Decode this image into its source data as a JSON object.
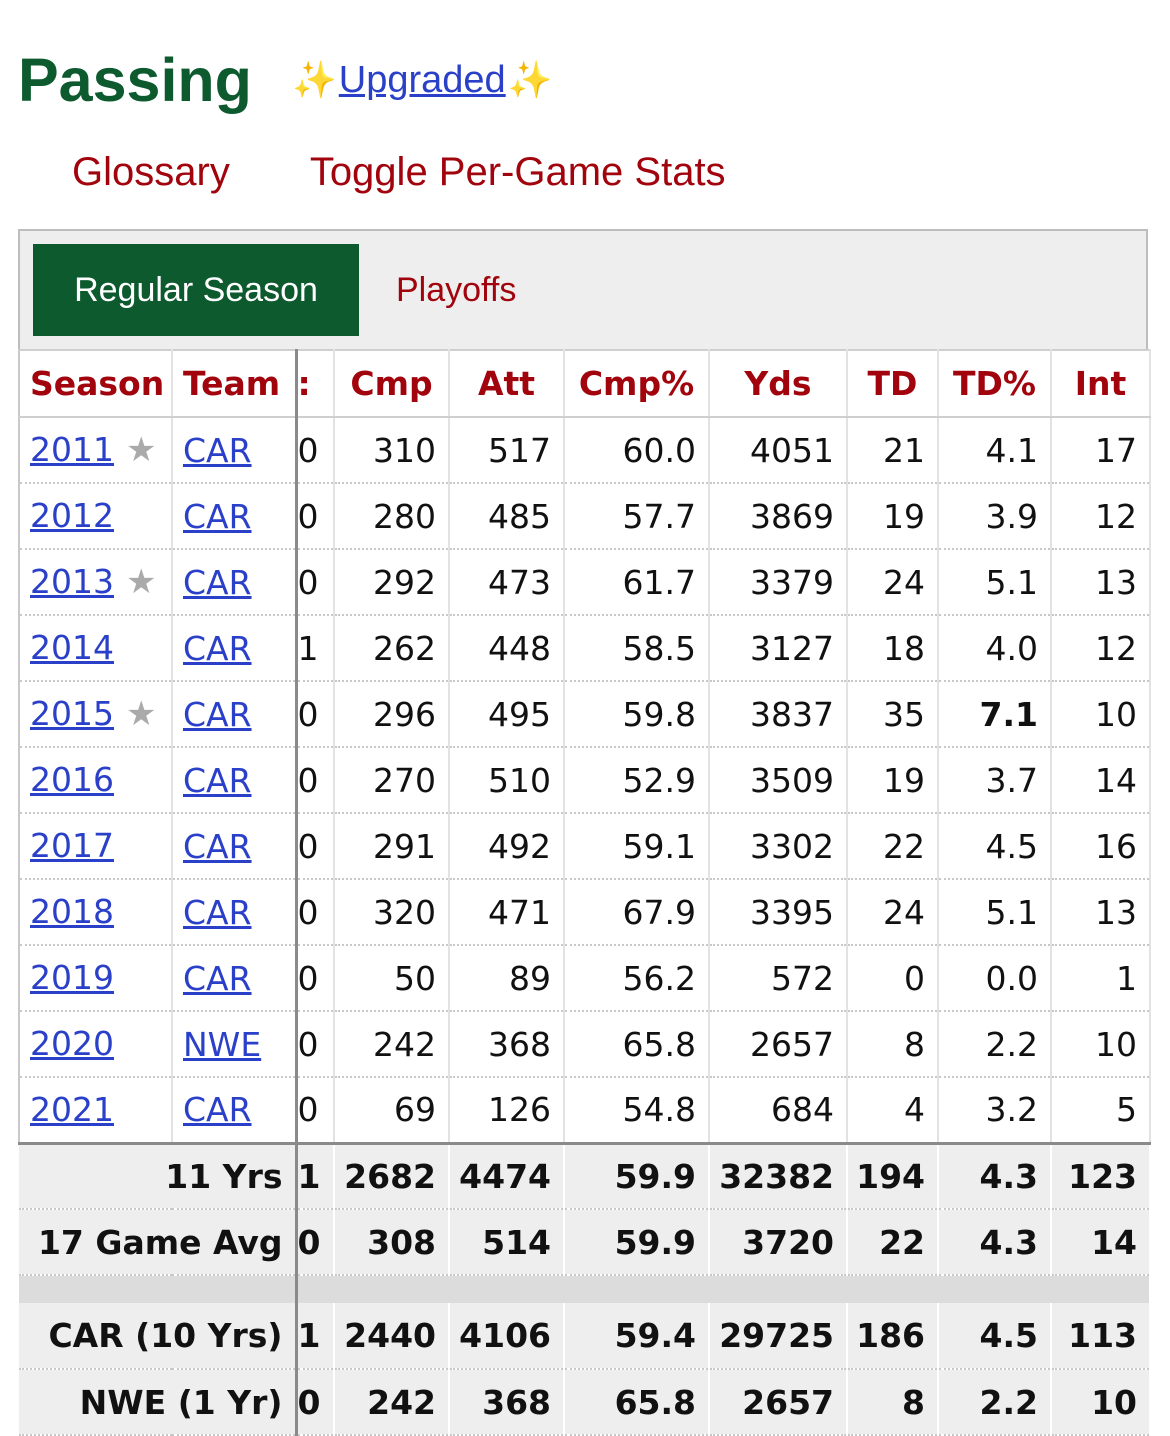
{
  "header": {
    "title": "Passing",
    "sparkle": "✨",
    "upgraded_label": "Upgraded"
  },
  "links": {
    "glossary": "Glossary",
    "toggle": "Toggle Per-Game Stats"
  },
  "tabs": {
    "regular": "Regular Season",
    "playoffs": "Playoffs"
  },
  "table": {
    "columns": [
      "Season",
      "Team",
      ":",
      "Cmp",
      "Att",
      "Cmp%",
      "Yds",
      "TD",
      "TD%",
      "Int"
    ],
    "rows": [
      {
        "season": "2011",
        "star": "★",
        "team": "CAR",
        "g": "0",
        "cmp": "310",
        "att": "517",
        "cmp_pct": "60.0",
        "yds": "4051",
        "td": "21",
        "td_pct": "4.1",
        "int": "17"
      },
      {
        "season": "2012",
        "star": "",
        "team": "CAR",
        "g": "0",
        "cmp": "280",
        "att": "485",
        "cmp_pct": "57.7",
        "yds": "3869",
        "td": "19",
        "td_pct": "3.9",
        "int": "12"
      },
      {
        "season": "2013",
        "star": "★",
        "team": "CAR",
        "g": "0",
        "cmp": "292",
        "att": "473",
        "cmp_pct": "61.7",
        "yds": "3379",
        "td": "24",
        "td_pct": "5.1",
        "int": "13"
      },
      {
        "season": "2014",
        "star": "",
        "team": "CAR",
        "g": "1",
        "cmp": "262",
        "att": "448",
        "cmp_pct": "58.5",
        "yds": "3127",
        "td": "18",
        "td_pct": "4.0",
        "int": "12"
      },
      {
        "season": "2015",
        "star": "★",
        "team": "CAR",
        "g": "0",
        "cmp": "296",
        "att": "495",
        "cmp_pct": "59.8",
        "yds": "3837",
        "td": "35",
        "td_pct": "7.1",
        "int": "10"
      },
      {
        "season": "2016",
        "star": "",
        "team": "CAR",
        "g": "0",
        "cmp": "270",
        "att": "510",
        "cmp_pct": "52.9",
        "yds": "3509",
        "td": "19",
        "td_pct": "3.7",
        "int": "14"
      },
      {
        "season": "2017",
        "star": "",
        "team": "CAR",
        "g": "0",
        "cmp": "291",
        "att": "492",
        "cmp_pct": "59.1",
        "yds": "3302",
        "td": "22",
        "td_pct": "4.5",
        "int": "16"
      },
      {
        "season": "2018",
        "star": "",
        "team": "CAR",
        "g": "0",
        "cmp": "320",
        "att": "471",
        "cmp_pct": "67.9",
        "yds": "3395",
        "td": "24",
        "td_pct": "5.1",
        "int": "13"
      },
      {
        "season": "2019",
        "star": "",
        "team": "CAR",
        "g": "0",
        "cmp": "50",
        "att": "89",
        "cmp_pct": "56.2",
        "yds": "572",
        "td": "0",
        "td_pct": "0.0",
        "int": "1"
      },
      {
        "season": "2020",
        "star": "",
        "team": "NWE",
        "g": "0",
        "cmp": "242",
        "att": "368",
        "cmp_pct": "65.8",
        "yds": "2657",
        "td": "8",
        "td_pct": "2.2",
        "int": "10"
      },
      {
        "season": "2021",
        "star": "",
        "team": "CAR",
        "g": "0",
        "cmp": "69",
        "att": "126",
        "cmp_pct": "54.8",
        "yds": "684",
        "td": "4",
        "td_pct": "3.2",
        "int": "5"
      }
    ],
    "summary": [
      {
        "label": "11 Yrs",
        "g": "1",
        "cmp": "2682",
        "att": "4474",
        "cmp_pct": "59.9",
        "yds": "32382",
        "td": "194",
        "td_pct": "4.3",
        "int": "123"
      },
      {
        "label": "17 Game Avg",
        "g": "0",
        "cmp": "308",
        "att": "514",
        "cmp_pct": "59.9",
        "yds": "3720",
        "td": "22",
        "td_pct": "4.3",
        "int": "14"
      }
    ],
    "teams": [
      {
        "label": "CAR (10 Yrs)",
        "g": "1",
        "cmp": "2440",
        "att": "4106",
        "cmp_pct": "59.4",
        "yds": "29725",
        "td": "186",
        "td_pct": "4.5",
        "int": "113"
      },
      {
        "label": "NWE (1 Yr)",
        "g": "0",
        "cmp": "242",
        "att": "368",
        "cmp_pct": "65.8",
        "yds": "2657",
        "td": "8",
        "td_pct": "2.2",
        "int": "10"
      }
    ]
  }
}
